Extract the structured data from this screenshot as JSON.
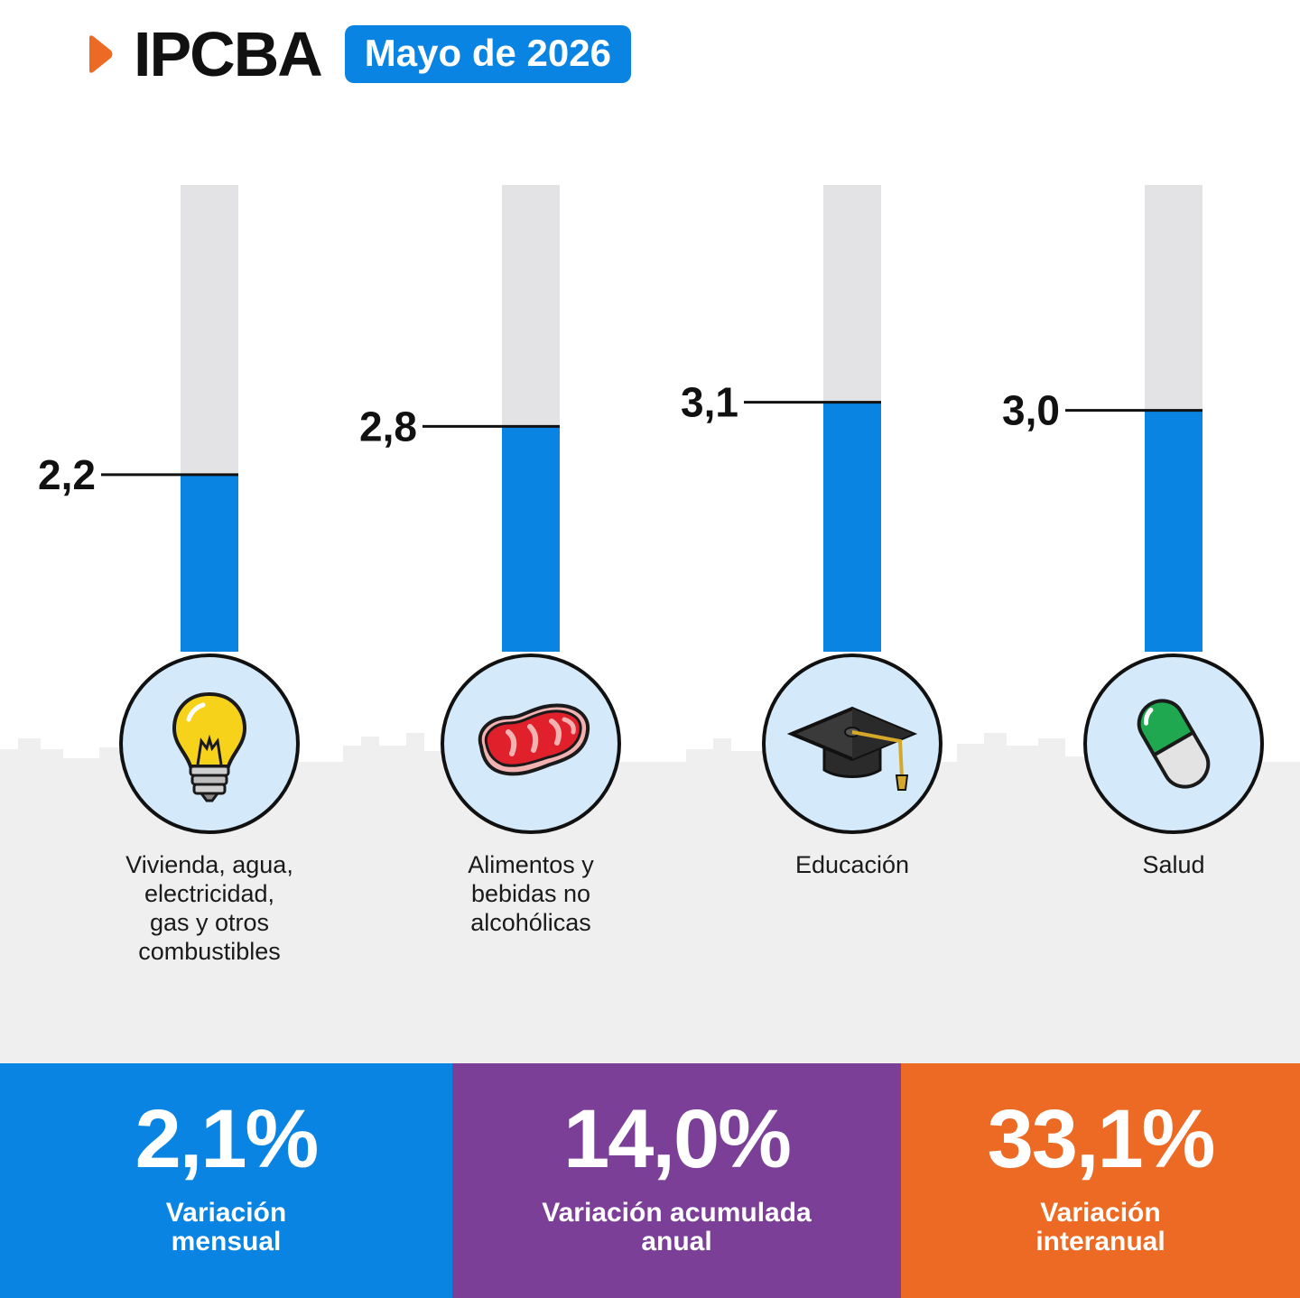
{
  "header": {
    "title": "IPCBA",
    "date_badge": "Mayo de 2026"
  },
  "colors": {
    "accent_blue": "#0a84e3",
    "accent_purple": "#7b3f98",
    "accent_orange": "#ec6a23",
    "track_gray": "#e3e3e5"
  },
  "chart_data": {
    "type": "bar",
    "categories": [
      "Vivienda, agua, electricidad, gas y otros combustibles",
      "Alimentos y bebidas no alcohólicas",
      "Educación",
      "Salud"
    ],
    "values": [
      2.2,
      2.8,
      3.1,
      3.0
    ],
    "value_labels": [
      "2,2",
      "2,8",
      "3,1",
      "3,0"
    ],
    "icons": [
      "light-bulb-icon",
      "meat-steak-icon",
      "graduation-cap-icon",
      "pill-capsule-icon"
    ],
    "ylim": [
      0,
      5.8
    ],
    "grid": false,
    "title": "",
    "xlabel": "",
    "ylabel": ""
  },
  "categories": [
    {
      "label_lines": [
        "Vivienda, agua,",
        "electricidad,",
        "gas y otros",
        "combustibles"
      ]
    },
    {
      "label_lines": [
        "Alimentos y",
        "bebidas no",
        "alcohólicas"
      ]
    },
    {
      "label_lines": [
        "Educación"
      ]
    },
    {
      "label_lines": [
        "Salud"
      ]
    }
  ],
  "stats": [
    {
      "value": "2,1%",
      "label_lines": [
        "Variación",
        "mensual"
      ],
      "color": "#0a84e3"
    },
    {
      "value": "14,0%",
      "label_lines": [
        "Variación acumulada",
        "anual"
      ],
      "color": "#7b3f98"
    },
    {
      "value": "33,1%",
      "label_lines": [
        "Variación",
        "interanual"
      ],
      "color": "#ec6a23"
    }
  ]
}
